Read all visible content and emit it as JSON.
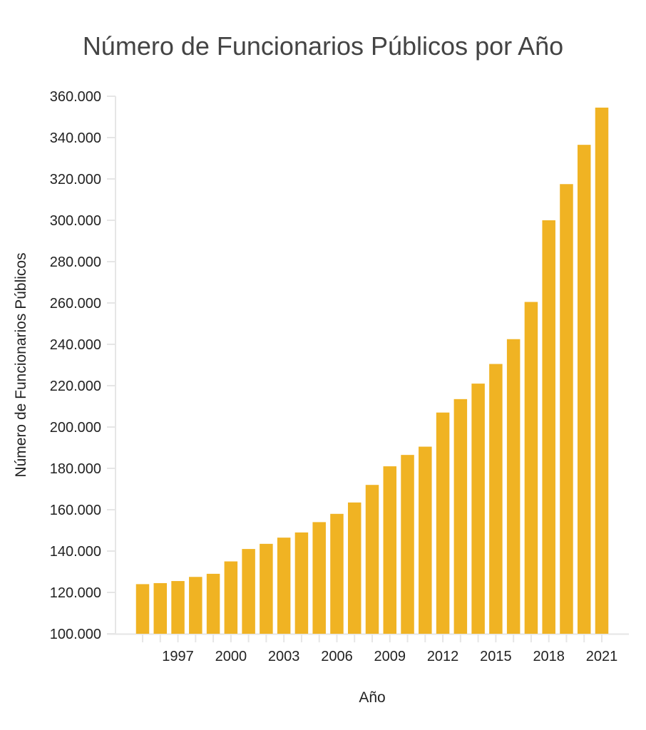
{
  "chart_data": {
    "type": "bar",
    "title": "Número de Funcionarios Públicos por Año",
    "xlabel": "Año",
    "ylabel": "Número de Funcionarios Públicos",
    "color": "#F0B323",
    "ylim": [
      100000,
      360000
    ],
    "yticks": [
      {
        "value": 100000,
        "label": "100.000"
      },
      {
        "value": 120000,
        "label": "120.000"
      },
      {
        "value": 140000,
        "label": "140.000"
      },
      {
        "value": 160000,
        "label": "160.000"
      },
      {
        "value": 180000,
        "label": "180.000"
      },
      {
        "value": 200000,
        "label": "200.000"
      },
      {
        "value": 220000,
        "label": "220.000"
      },
      {
        "value": 240000,
        "label": "240.000"
      },
      {
        "value": 260000,
        "label": "260.000"
      },
      {
        "value": 280000,
        "label": "280.000"
      },
      {
        "value": 300000,
        "label": "300.000"
      },
      {
        "value": 320000,
        "label": "320.000"
      },
      {
        "value": 340000,
        "label": "340.000"
      },
      {
        "value": 360000,
        "label": "360.000"
      }
    ],
    "xtick_labels": [
      "1997",
      "2000",
      "2003",
      "2006",
      "2009",
      "2012",
      "2015",
      "2018",
      "2021"
    ],
    "categories": [
      1995,
      1996,
      1997,
      1998,
      1999,
      2000,
      2001,
      2002,
      2003,
      2004,
      2005,
      2006,
      2007,
      2008,
      2009,
      2010,
      2011,
      2012,
      2013,
      2014,
      2015,
      2016,
      2017,
      2018,
      2019,
      2020,
      2021
    ],
    "values": [
      124000,
      124500,
      125500,
      127500,
      129000,
      135000,
      141000,
      143500,
      146500,
      149000,
      154000,
      158000,
      163500,
      172000,
      181000,
      186500,
      190500,
      207000,
      213500,
      221000,
      230500,
      242500,
      260500,
      300000,
      317500,
      336500,
      354500
    ]
  }
}
